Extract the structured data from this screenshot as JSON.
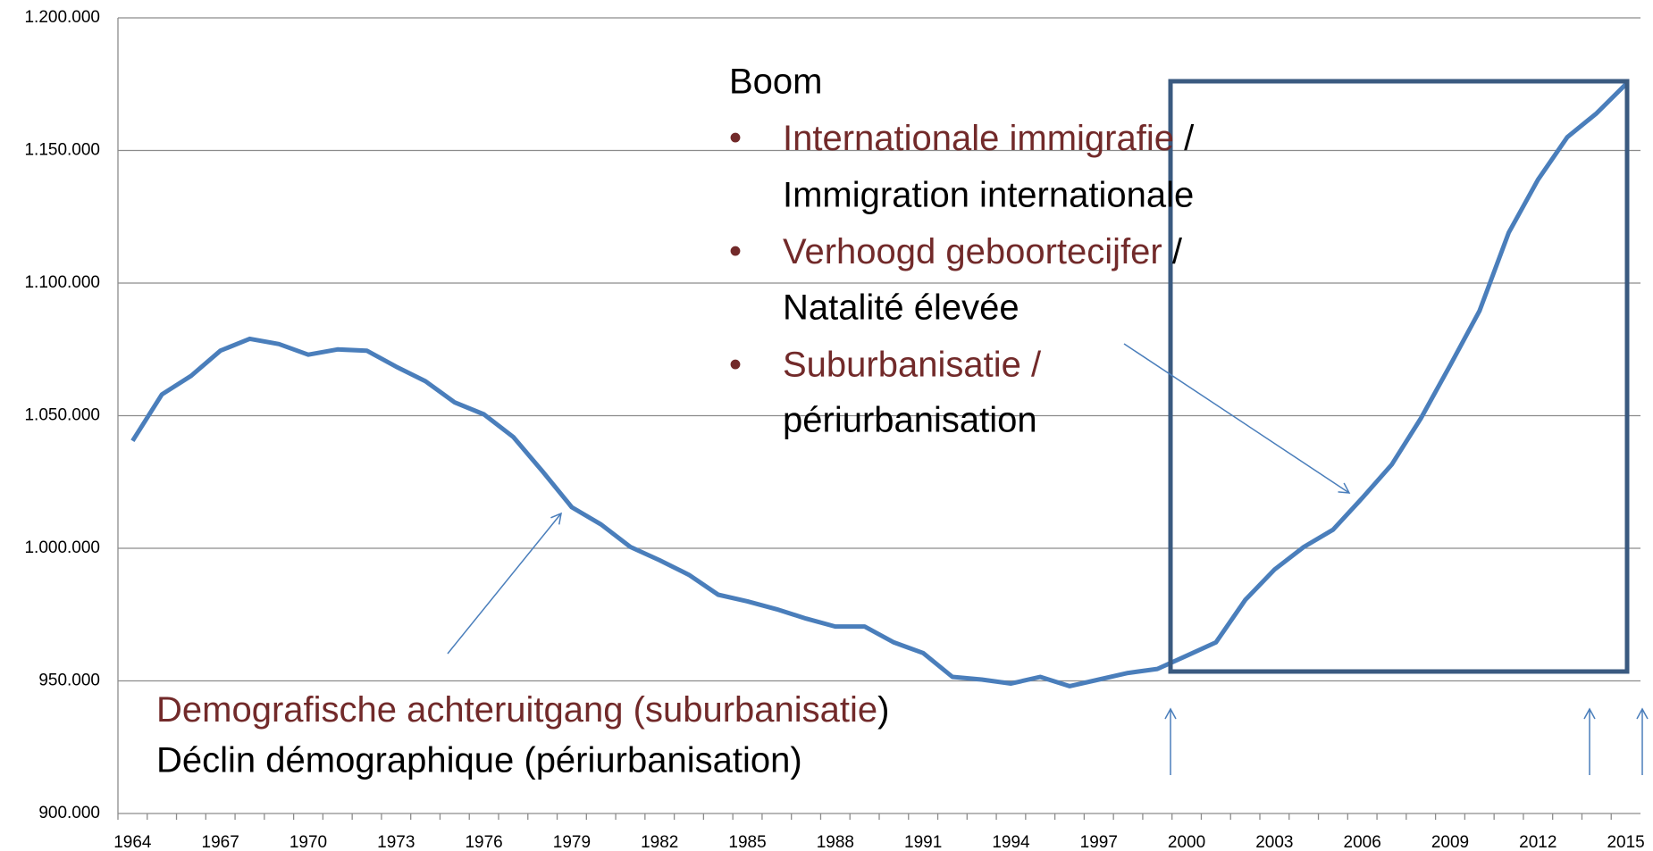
{
  "chart_data": {
    "type": "line",
    "categories": [
      "1964",
      null,
      null,
      "1967",
      null,
      null,
      "1970",
      null,
      null,
      "1973",
      null,
      null,
      "1976",
      null,
      null,
      "1979",
      null,
      null,
      "1982",
      null,
      null,
      "1985",
      null,
      null,
      "1988",
      null,
      null,
      "1991",
      null,
      null,
      "1994",
      null,
      null,
      "1997",
      null,
      null,
      "2000",
      null,
      null,
      "2003",
      null,
      null,
      "2006",
      null,
      null,
      "2009",
      null,
      null,
      "2012",
      null,
      null,
      "2015"
    ],
    "series": [
      {
        "color": "#4a7ebb",
        "values": [
          1040500,
          1058000,
          1065000,
          1074500,
          1079000,
          1077000,
          1073000,
          1075000,
          1074500,
          1068500,
          1063000,
          1055000,
          1050500,
          1042000,
          1029000,
          1015500,
          1009000,
          1000500,
          995500,
          990000,
          982500,
          980000,
          977000,
          973500,
          970500,
          970500,
          964500,
          960500,
          951500,
          950500,
          949000,
          951500,
          948000,
          950500,
          953000,
          954500,
          959500,
          964500,
          980500,
          992000,
          1000500,
          1007000,
          1019000,
          1031500,
          1049000,
          1069000,
          1089500,
          1119000,
          1139000,
          1155000,
          1164000,
          1175000
        ]
      }
    ],
    "ylim": [
      900000,
      1200000
    ],
    "yticks": [
      {
        "value": 900000,
        "label": "900.000"
      },
      {
        "value": 950000,
        "label": "950.000"
      },
      {
        "value": 1000000,
        "label": "1.000.000"
      },
      {
        "value": 1050000,
        "label": "1.050.000"
      },
      {
        "value": 1100000,
        "label": "1.100.000"
      },
      {
        "value": 1150000,
        "label": "1.150.000"
      },
      {
        "value": 1200000,
        "label": "1.200.000"
      }
    ],
    "grid": true,
    "annotations": {
      "boom": {
        "title": "Boom",
        "items": [
          {
            "nl": "Internationale immigrafie",
            "slash": " /",
            "fr": "Immigration internationale"
          },
          {
            "nl": "Verhoogd geboortecijfer",
            "slash": " /",
            "fr": "Natalité élevée"
          },
          {
            "nl": "Suburbanisatie /",
            "fr": "périurbanisation"
          }
        ]
      },
      "decline": {
        "nl": "Demografische achteruitgang (suburbanisatie",
        "close": ")",
        "fr": "Déclin démographique (périurbanisation)"
      }
    }
  }
}
